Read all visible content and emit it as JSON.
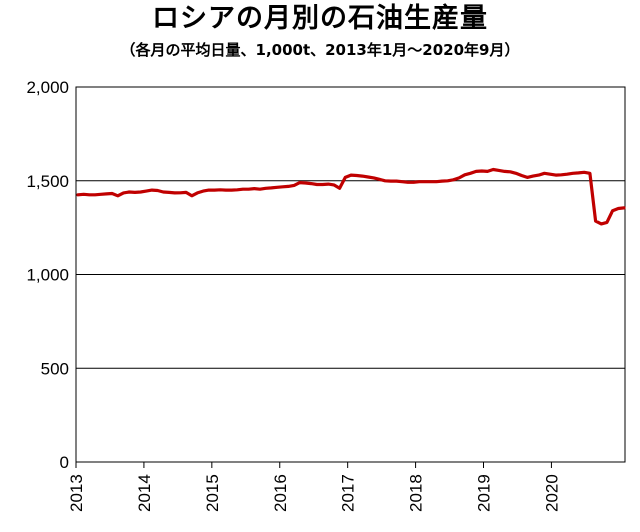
{
  "chart_data": {
    "type": "line",
    "title": "ロシアの月別の石油生産量",
    "subtitle": "（各月の平均日量、1,000t、2013年1月～2020年9月）",
    "xlabel": "",
    "ylabel": "",
    "x_ticks": [
      "2013",
      "2014",
      "2015",
      "2016",
      "2017",
      "2018",
      "2019",
      "2020"
    ],
    "y_ticks": [
      "0",
      "500",
      "1,000",
      "1,500",
      "2,000"
    ],
    "ylim": [
      0,
      2000
    ],
    "grid": true,
    "x_start": "2013-01",
    "x_end": "2020-09",
    "line_color": "#c00000",
    "series": [
      {
        "values": [
          1425,
          1428,
          1425,
          1425,
          1428,
          1430,
          1432,
          1420,
          1435,
          1440,
          1438,
          1440,
          1445,
          1450,
          1448,
          1440,
          1438,
          1435,
          1436,
          1438,
          1420,
          1435,
          1445,
          1450,
          1450,
          1452,
          1450,
          1450,
          1452,
          1455,
          1455,
          1458,
          1455,
          1460,
          1462,
          1465,
          1468,
          1470,
          1475,
          1490,
          1488,
          1485,
          1480,
          1480,
          1482,
          1478,
          1460,
          1518,
          1530,
          1528,
          1525,
          1520,
          1515,
          1508,
          1500,
          1498,
          1498,
          1495,
          1492,
          1492,
          1495,
          1495,
          1495,
          1495,
          1498,
          1500,
          1505,
          1515,
          1532,
          1540,
          1550,
          1552,
          1550,
          1560,
          1555,
          1550,
          1548,
          1540,
          1528,
          1518,
          1525,
          1530,
          1540,
          1535,
          1530,
          1532,
          1535,
          1540,
          1542,
          1545,
          1540,
          1285,
          1270,
          1278,
          1340,
          1352,
          1355
        ]
      }
    ]
  }
}
